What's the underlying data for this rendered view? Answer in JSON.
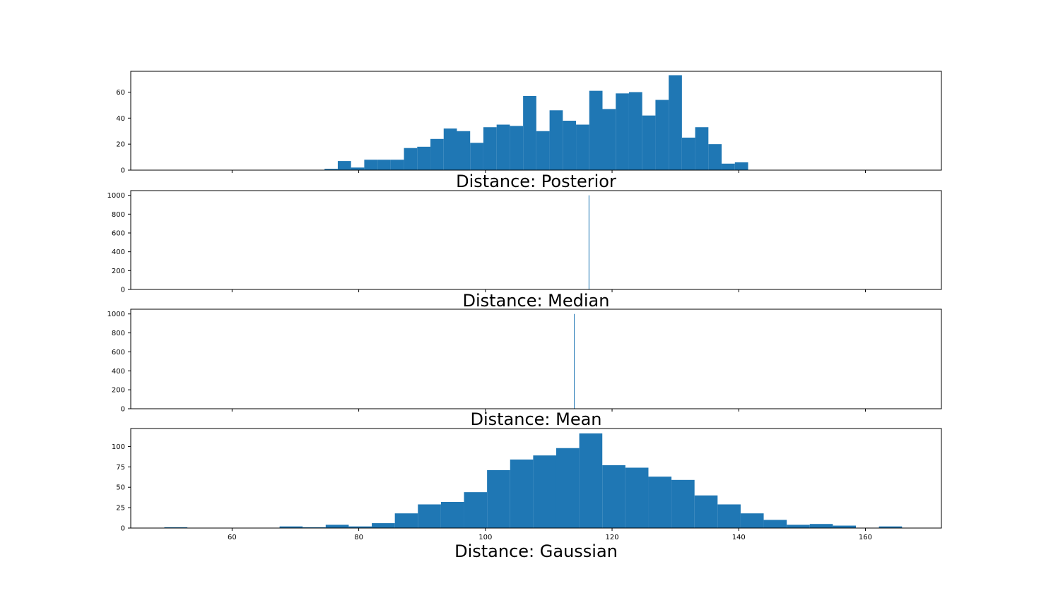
{
  "colors": {
    "bar": "#1f77b4",
    "axis": "#000000",
    "background": "#ffffff"
  },
  "chart_data": [
    {
      "type": "bar",
      "title": "Distance: Posterior",
      "xlim": [
        44,
        172
      ],
      "ylim": [
        0,
        76
      ],
      "yticks": [
        0,
        20,
        40,
        60
      ],
      "yticklabels": [
        "0",
        "20",
        "40",
        "60"
      ],
      "xticks": [
        60,
        80,
        100,
        120,
        140,
        160
      ],
      "show_xticklabels": false,
      "bin_start": 74.6,
      "bin_width": 2.09,
      "values": [
        1,
        7,
        2,
        8,
        8,
        8,
        17,
        18,
        24,
        32,
        30,
        21,
        33,
        35,
        34,
        57,
        30,
        46,
        38,
        35,
        61,
        47,
        59,
        60,
        42,
        54,
        73,
        25,
        33,
        20,
        5,
        6
      ]
    },
    {
      "type": "bar",
      "title": "Distance: Median",
      "xlim": [
        44,
        172
      ],
      "ylim": [
        0,
        1050
      ],
      "yticks": [
        0,
        200,
        400,
        600,
        800,
        1000
      ],
      "yticklabels": [
        "0",
        "200",
        "400",
        "600",
        "800",
        "1000"
      ],
      "xticks": [
        60,
        80,
        100,
        120,
        140,
        160
      ],
      "show_xticklabels": false,
      "bin_start": 116.3,
      "bin_width": 0.08,
      "values": [
        1000
      ]
    },
    {
      "type": "bar",
      "title": "Distance: Mean",
      "xlim": [
        44,
        172
      ],
      "ylim": [
        0,
        1050
      ],
      "yticks": [
        0,
        200,
        400,
        600,
        800,
        1000
      ],
      "yticklabels": [
        "0",
        "200",
        "400",
        "600",
        "800",
        "1000"
      ],
      "xticks": [
        60,
        80,
        100,
        120,
        140,
        160
      ],
      "show_xticklabels": false,
      "bin_start": 113.98,
      "bin_width": 0.08,
      "values": [
        1000
      ]
    },
    {
      "type": "bar",
      "title": "Distance: Gaussian",
      "xlim": [
        44,
        172
      ],
      "ylim": [
        0,
        122
      ],
      "yticks": [
        0,
        25,
        50,
        75,
        100
      ],
      "yticklabels": [
        "0",
        "25",
        "50",
        "75",
        "100"
      ],
      "xticks": [
        60,
        80,
        100,
        120,
        140,
        160
      ],
      "xticklabels": [
        "60",
        "80",
        "100",
        "120",
        "140",
        "160"
      ],
      "show_xticklabels": true,
      "bin_start": 49.3,
      "bin_width": 3.64,
      "values": [
        1,
        0,
        0,
        0,
        0,
        2,
        1,
        4,
        2,
        6,
        18,
        29,
        32,
        44,
        71,
        84,
        89,
        98,
        116,
        77,
        74,
        63,
        59,
        40,
        29,
        18,
        10,
        4,
        5,
        3,
        0,
        2
      ]
    }
  ]
}
